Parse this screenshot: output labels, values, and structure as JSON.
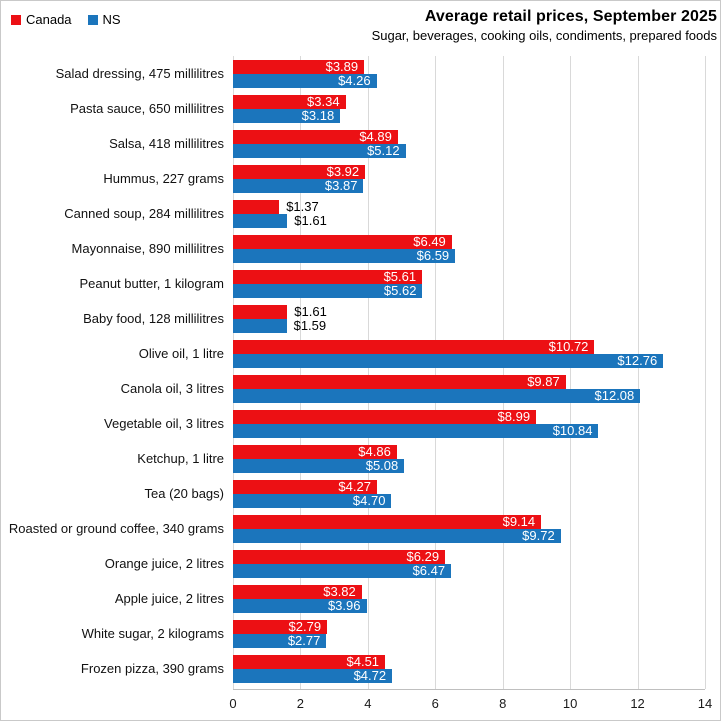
{
  "chart_data": {
    "type": "bar",
    "orientation": "horizontal",
    "title": "Average retail prices, September 2025",
    "subtitle": "Sugar, beverages, cooking oils, condiments, prepared foods",
    "legend_position": "top-left",
    "grid": true,
    "xlim": [
      0,
      14
    ],
    "xticks": [
      0,
      2,
      4,
      6,
      8,
      10,
      12,
      14
    ],
    "colors": {
      "canada_red": "#ec1014",
      "ns_blue": "#1b75bc",
      "gridline": "#d9d9d9"
    },
    "label_inside_threshold": 2.5,
    "categories": [
      "Salad dressing, 475 millilitres",
      "Pasta sauce, 650 millilitres",
      "Salsa, 418 millilitres",
      "Hummus, 227 grams",
      "Canned soup, 284 millilitres",
      "Mayonnaise, 890 millilitres",
      "Peanut butter, 1 kilogram",
      "Baby food, 128 millilitres",
      "Olive oil, 1 litre",
      "Canola oil, 3 litres",
      "Vegetable oil, 3 litres",
      "Ketchup, 1 litre",
      "Tea (20 bags)",
      "Roasted or ground coffee, 340 grams",
      "Orange juice, 2 litres",
      "Apple juice, 2 litres",
      "White sugar, 2 kilograms",
      "Frozen pizza, 390 grams"
    ],
    "series": [
      {
        "name": "Canada",
        "color": "#ec1014",
        "values": [
          3.89,
          3.34,
          4.89,
          3.92,
          1.37,
          6.49,
          5.61,
          1.61,
          10.72,
          9.87,
          8.99,
          4.86,
          4.27,
          9.14,
          6.29,
          3.82,
          2.79,
          4.51
        ],
        "labels": [
          "$3.89",
          "$3.34",
          "$4.89",
          "$3.92",
          "$1.37",
          "$6.49",
          "$5.61",
          "$1.61",
          "$10.72",
          "$9.87",
          "$8.99",
          "$4.86",
          "$4.27",
          "$9.14",
          "$6.29",
          "$3.82",
          "$2.79",
          "$4.51"
        ]
      },
      {
        "name": "NS",
        "color": "#1b75bc",
        "values": [
          4.26,
          3.18,
          5.12,
          3.87,
          1.61,
          6.59,
          5.62,
          1.59,
          12.76,
          12.08,
          10.84,
          5.08,
          4.7,
          9.72,
          6.47,
          3.96,
          2.77,
          4.72
        ],
        "labels": [
          "$4.26",
          "$3.18",
          "$5.12",
          "$3.87",
          "$1.61",
          "$6.59",
          "$5.62",
          "$1.59",
          "$12.76",
          "$12.08",
          "$10.84",
          "$5.08",
          "$4.70",
          "$9.72",
          "$6.47",
          "$3.96",
          "$2.77",
          "$4.72"
        ]
      }
    ]
  }
}
